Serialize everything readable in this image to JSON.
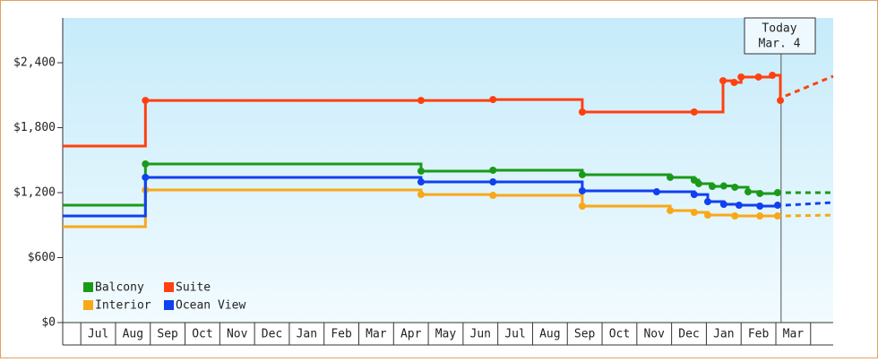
{
  "chart_data": {
    "type": "step-line",
    "xlim": [
      -0.52,
      21.65
    ],
    "xticks": [
      {
        "value": 0.5,
        "label": "Jul"
      },
      {
        "value": 1.5,
        "label": "Aug"
      },
      {
        "value": 2.5,
        "label": "Sep"
      },
      {
        "value": 3.5,
        "label": "Oct"
      },
      {
        "value": 4.5,
        "label": "Nov"
      },
      {
        "value": 5.5,
        "label": "Dec"
      },
      {
        "value": 6.5,
        "label": "Jan"
      },
      {
        "value": 7.5,
        "label": "Feb"
      },
      {
        "value": 8.5,
        "label": "Mar"
      },
      {
        "value": 9.5,
        "label": "Apr"
      },
      {
        "value": 10.5,
        "label": "May"
      },
      {
        "value": 11.5,
        "label": "Jun"
      },
      {
        "value": 12.5,
        "label": "Jul"
      },
      {
        "value": 13.5,
        "label": "Aug"
      },
      {
        "value": 14.5,
        "label": "Sep"
      },
      {
        "value": 15.5,
        "label": "Oct"
      },
      {
        "value": 16.5,
        "label": "Nov"
      },
      {
        "value": 17.5,
        "label": "Dec"
      },
      {
        "value": 18.5,
        "label": "Jan"
      },
      {
        "value": 19.5,
        "label": "Feb"
      },
      {
        "value": 20.5,
        "label": "Mar"
      }
    ],
    "ylim": [
      0,
      2814
    ],
    "yticks": [
      {
        "value": 0,
        "label": "$0"
      },
      {
        "value": 600,
        "label": "$600"
      },
      {
        "value": 1200,
        "label": "$1,200"
      },
      {
        "value": 1800,
        "label": "$1,800"
      },
      {
        "value": 2400,
        "label": "$2,400"
      }
    ],
    "legend": "lower left",
    "today": {
      "x": 20.15,
      "lines": [
        "Today",
        "Mar. 4"
      ]
    },
    "series": [
      {
        "name": "Balcony",
        "color": "#1a9a1a",
        "x": [
          -0.52,
          1.86,
          9.79,
          11.86,
          14.43,
          16.96,
          17.65,
          17.78,
          18.17,
          18.5,
          18.82,
          19.2,
          19.54,
          20.05
        ],
        "values": [
          1084,
          1465,
          1399,
          1407,
          1366,
          1341,
          1316,
          1283,
          1258,
          1262,
          1250,
          1208,
          1192,
          1200
        ],
        "forecast": {
          "x": [
            20.28,
            21.65
          ],
          "values": [
            1200,
            1200
          ]
        }
      },
      {
        "name": "Suite",
        "color": "#ff4010",
        "x": [
          -0.52,
          1.86,
          9.79,
          11.86,
          14.43,
          17.65,
          18.48,
          18.8,
          19.0,
          19.5,
          19.9,
          20.13
        ],
        "values": [
          1630,
          2052,
          2052,
          2060,
          1945,
          1945,
          2234,
          2218,
          2268,
          2268,
          2284,
          2052
        ],
        "forecast": {
          "x": [
            20.28,
            21.65
          ],
          "values": [
            2094,
            2276
          ]
        }
      },
      {
        "name": "Interior",
        "color": "#f8a818",
        "x": [
          -0.52,
          1.86,
          9.79,
          11.86,
          14.43,
          16.96,
          17.65,
          18.04,
          18.82,
          19.54,
          20.05
        ],
        "values": [
          886,
          1225,
          1183,
          1175,
          1076,
          1035,
          1018,
          993,
          985,
          985,
          985
        ],
        "forecast": {
          "x": [
            20.28,
            21.65
          ],
          "values": [
            985,
            993
          ]
        }
      },
      {
        "name": "Ocean View",
        "color": "#1040f0",
        "x": [
          -0.52,
          1.86,
          9.79,
          11.86,
          14.43,
          16.57,
          17.65,
          18.04,
          18.5,
          18.94,
          19.54,
          20.05
        ],
        "values": [
          985,
          1341,
          1299,
          1299,
          1217,
          1208,
          1183,
          1117,
          1092,
          1084,
          1076,
          1084
        ],
        "forecast": {
          "x": [
            20.28,
            21.65
          ],
          "values": [
            1084,
            1109
          ]
        }
      }
    ]
  }
}
